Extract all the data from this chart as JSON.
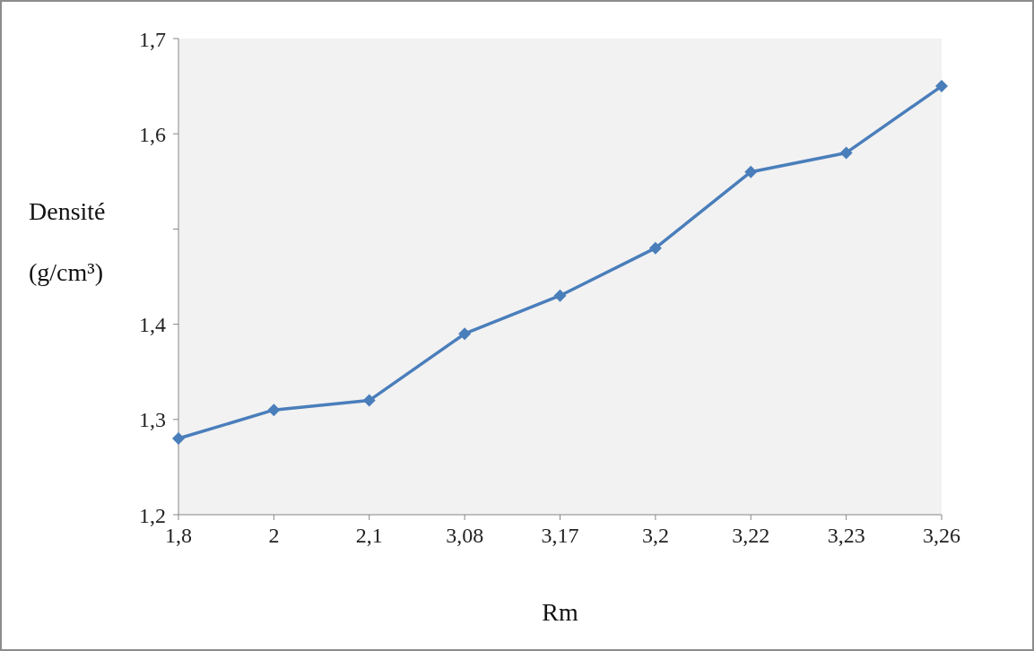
{
  "chart_data": {
    "type": "line",
    "xlabel": "Rm",
    "ylabel": "Densité (g/cm³)",
    "categories": [
      "1,8",
      "2",
      "2,1",
      "3,08",
      "3,17",
      "3,2",
      "3,22",
      "3,23",
      "3,26"
    ],
    "series": [
      {
        "color": "#4a7ebb",
        "values": [
          1.28,
          1.31,
          1.32,
          1.39,
          1.43,
          1.48,
          1.56,
          1.58,
          1.65
        ]
      }
    ],
    "ylim": [
      1.2,
      1.7
    ],
    "yticks": [
      {
        "value": 1.2,
        "label": "1,2"
      },
      {
        "value": 1.3,
        "label": "1,3"
      },
      {
        "value": 1.4,
        "label": "1,4"
      },
      {
        "value": 1.5,
        "label": null
      },
      {
        "value": 1.6,
        "label": "1,6"
      },
      {
        "value": 1.7,
        "label": "1,7"
      }
    ],
    "grid": false,
    "marker": "diamond",
    "line_style": "solid"
  }
}
